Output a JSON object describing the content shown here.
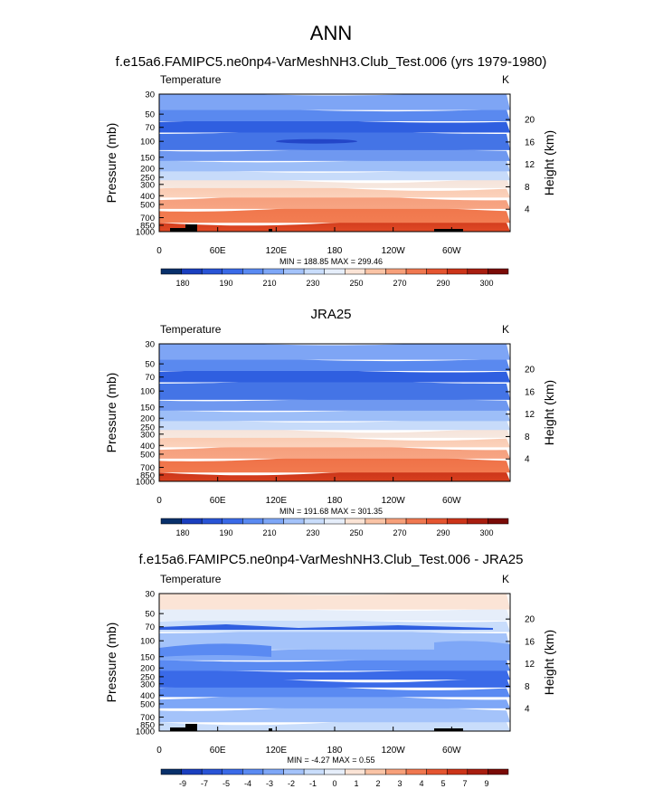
{
  "page_title": "ANN",
  "chart_data": [
    {
      "type": "heatmap",
      "title": "f.e15a6.FAMIPC5.ne0np4-VarMeshNH3.Club_Test.006 (yrs 1979-1980)",
      "subtitle_left": "Temperature",
      "units": "K",
      "ylabel": "Pressure (mb)",
      "ylabel_right": "Height (km)",
      "x_ticks": [
        "0",
        "60E",
        "120E",
        "180",
        "120W",
        "60W"
      ],
      "x_range_lon": [
        0,
        360
      ],
      "pressure_ticks": [
        "30",
        "50",
        "70",
        "100",
        "150",
        "200",
        "250",
        "300",
        "400",
        "500",
        "700",
        "850",
        "1000"
      ],
      "height_ticks": [
        "20",
        "16",
        "12",
        "8",
        "4"
      ],
      "ylim_mb": [
        30,
        1000
      ],
      "stats": "MIN = 188.85  MAX = 299.46",
      "colorbar": {
        "labels": [
          "180",
          "190",
          "210",
          "230",
          "250",
          "270",
          "290",
          "300"
        ],
        "colors": [
          "#08306b",
          "#1a3fbf",
          "#2954d6",
          "#3a6ae8",
          "#5a8af2",
          "#7ea7f7",
          "#a4c3fa",
          "#c9ddfb",
          "#e6eefa",
          "#fbe4d6",
          "#fac4a6",
          "#f7a07a",
          "#f07850",
          "#e55530",
          "#cc3419",
          "#a81e10",
          "#7a0b07"
        ]
      },
      "bands_bottom_up": [
        [
          "#e04a25",
          "#d13a1c"
        ],
        [
          "#f27d52",
          "#f0764b"
        ],
        [
          "#f7a584",
          "#f59d7a"
        ],
        [
          "#fbd2bc",
          "#fac8ae"
        ],
        [
          "#f6e8e0",
          "#f6e2d8"
        ],
        [
          "#c7dbfa",
          "#c7dbfa"
        ],
        [
          "#9dbef8",
          "#9dbef8"
        ],
        [
          "#6f98f0",
          "#6f98f0"
        ],
        [
          "#4474e6",
          "#4474e6"
        ],
        [
          "#2f5fe0",
          "#2f5fe0"
        ],
        [
          "#5a89ef",
          "#5a89ef"
        ],
        [
          "#7ea5f5",
          "#7ea5f5"
        ]
      ]
    },
    {
      "type": "heatmap",
      "title": "JRA25",
      "subtitle_left": "Temperature",
      "units": "K",
      "ylabel": "Pressure (mb)",
      "ylabel_right": "Height (km)",
      "x_ticks": [
        "0",
        "60E",
        "120E",
        "180",
        "120W",
        "60W"
      ],
      "x_range_lon": [
        0,
        360
      ],
      "pressure_ticks": [
        "30",
        "50",
        "70",
        "100",
        "150",
        "200",
        "250",
        "300",
        "400",
        "500",
        "700",
        "850",
        "1000"
      ],
      "height_ticks": [
        "20",
        "16",
        "12",
        "8",
        "4"
      ],
      "ylim_mb": [
        30,
        1000
      ],
      "stats": "MIN = 191.68  MAX = 301.35",
      "colorbar": {
        "labels": [
          "180",
          "190",
          "210",
          "230",
          "250",
          "270",
          "290",
          "300"
        ],
        "colors": [
          "#08306b",
          "#1a3fbf",
          "#2954d6",
          "#3a6ae8",
          "#5a8af2",
          "#7ea7f7",
          "#a4c3fa",
          "#c9ddfb",
          "#e6eefa",
          "#fbe4d6",
          "#fac4a6",
          "#f7a07a",
          "#f07850",
          "#e55530",
          "#cc3419",
          "#a81e10",
          "#7a0b07"
        ]
      },
      "bands_bottom_up": [
        [
          "#d8401f",
          "#c93318"
        ],
        [
          "#f27a4f",
          "#ee7046"
        ],
        [
          "#f7a584",
          "#f59d7a"
        ],
        [
          "#fbd2bc",
          "#fac8ae"
        ],
        [
          "#f6e8e0",
          "#f6e2d8"
        ],
        [
          "#c7dbfa",
          "#c7dbfa"
        ],
        [
          "#9dbef8",
          "#9dbef8"
        ],
        [
          "#6f98f0",
          "#6f98f0"
        ],
        [
          "#4474e6",
          "#4474e6"
        ],
        [
          "#2f5fe0",
          "#2f5fe0"
        ],
        [
          "#5a89ef",
          "#5a89ef"
        ],
        [
          "#7ea5f5",
          "#7ea5f5"
        ]
      ]
    },
    {
      "type": "heatmap",
      "title": "f.e15a6.FAMIPC5.ne0np4-VarMeshNH3.Club_Test.006 - JRA25",
      "subtitle_left": "Temperature",
      "units": "K",
      "ylabel": "Pressure (mb)",
      "ylabel_right": "Height (km)",
      "x_ticks": [
        "0",
        "60E",
        "120E",
        "180",
        "120W",
        "60W"
      ],
      "x_range_lon": [
        0,
        360
      ],
      "pressure_ticks": [
        "30",
        "50",
        "70",
        "100",
        "150",
        "200",
        "250",
        "300",
        "400",
        "500",
        "700",
        "850",
        "1000"
      ],
      "height_ticks": [
        "20",
        "16",
        "12",
        "8",
        "4"
      ],
      "ylim_mb": [
        30,
        1000
      ],
      "stats": "MIN =  -4.27  MAX =   0.55",
      "colorbar": {
        "labels": [
          "-9",
          "-7",
          "-5",
          "-4",
          "-3",
          "-2",
          "-1",
          "0",
          "1",
          "2",
          "3",
          "4",
          "5",
          "7",
          "9"
        ],
        "colors": [
          "#08306b",
          "#1a3fbf",
          "#2954d6",
          "#3a6ae8",
          "#5a8af2",
          "#7ea7f7",
          "#a4c3fa",
          "#c9ddfb",
          "#e6eefa",
          "#fbe4d6",
          "#fac4a6",
          "#f7a07a",
          "#f07850",
          "#e55530",
          "#cc3419",
          "#a81e10",
          "#7a0b07"
        ]
      },
      "bands_bottom_up": [
        [
          "#c9ddfb",
          "#c9ddfb"
        ],
        [
          "#a4c3fa",
          "#a4c3fa"
        ],
        [
          "#7ea7f7",
          "#7ea7f7"
        ],
        [
          "#5a8af2",
          "#5a8af2"
        ],
        [
          "#3a6ae8",
          "#3a6ae8"
        ],
        [
          "#3a6ae8",
          "#3a6ae8"
        ],
        [
          "#5a8af2",
          "#5a8af2"
        ],
        [
          "#7ea7f7",
          "#7ea7f7"
        ],
        [
          "#a4c3fa",
          "#a4c3fa"
        ],
        [
          "#c9ddfb",
          "#c9ddfb"
        ],
        [
          "#e6eefa",
          "#e6eefa"
        ],
        [
          "#fbe4d6",
          "#fbe4d6"
        ]
      ]
    }
  ]
}
